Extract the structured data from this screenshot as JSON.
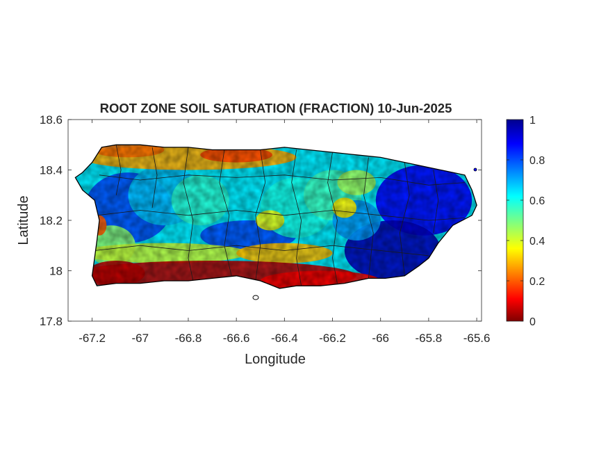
{
  "figure": {
    "title": "ROOT ZONE SOIL SATURATION (FRACTION) 10-Jun-2025"
  },
  "chart_data": {
    "type": "heatmap",
    "title": "ROOT ZONE SOIL SATURATION (FRACTION) 10-Jun-2025",
    "xlabel": "Longitude",
    "ylabel": "Latitude",
    "xlim": [
      -67.3,
      -65.58
    ],
    "ylim": [
      17.8,
      18.6
    ],
    "x_ticks": [
      -67.2,
      -67.0,
      -66.8,
      -66.6,
      -66.4,
      -66.2,
      -66.0,
      -65.8,
      -65.6
    ],
    "x_tick_labels": [
      "-67.2",
      "-67",
      "-66.8",
      "-66.6",
      "-66.4",
      "-66.2",
      "-66",
      "-65.8",
      "-65.6"
    ],
    "y_ticks": [
      17.8,
      18.0,
      18.2,
      18.4,
      18.6
    ],
    "y_tick_labels": [
      "17.8",
      "18",
      "18.2",
      "18.4",
      "18.6"
    ],
    "colorbar": {
      "colormap": "jet",
      "range": [
        0,
        1
      ],
      "ticks": [
        0,
        0.2,
        0.4,
        0.6,
        0.8,
        1
      ],
      "tick_labels": [
        "0",
        "0.2",
        "0.4",
        "0.6",
        "0.8",
        "1"
      ],
      "placement": "right"
    },
    "region": "Puerto Rico",
    "grid": false,
    "regional_pattern": [
      {
        "area": "south coast",
        "value": 0.05
      },
      {
        "area": "north coast",
        "value": 0.2
      },
      {
        "area": "west interior",
        "value": 0.75
      },
      {
        "area": "central interior",
        "value": 0.65
      },
      {
        "area": "east",
        "value": 0.9
      }
    ]
  },
  "colors": {
    "axis": "#262626",
    "background": "#ffffff",
    "jet_stops": [
      "#7f0000",
      "#ff0000",
      "#ffff00",
      "#00ffff",
      "#0000ff",
      "#00008f"
    ]
  }
}
